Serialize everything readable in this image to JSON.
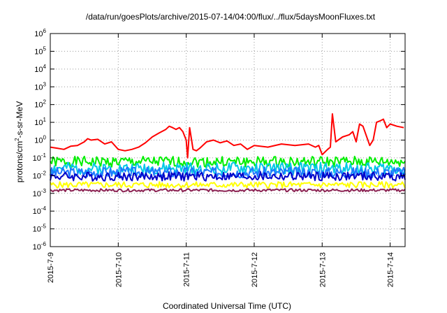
{
  "chart_data": {
    "type": "line",
    "title": "/data/run/goesPlots/archive/2015-07-14/04:00/flux/../flux/5daysMoonFluxes.txt",
    "xlabel": "Coordinated Universal Time (UTC)",
    "ylabel": "protons/cm2-s-sr-MeV",
    "yscale": "log",
    "ylim": [
      1e-06,
      1000000.0
    ],
    "xlim": [
      0,
      5.22
    ],
    "grid": true,
    "legend": "none",
    "x_ticks": [
      {
        "x": 0,
        "label": "2015-7-9"
      },
      {
        "x": 1,
        "label": "2015-7-10"
      },
      {
        "x": 2,
        "label": "2015-7-11"
      },
      {
        "x": 3,
        "label": "2015-7-12"
      },
      {
        "x": 4,
        "label": "2015-7-13"
      },
      {
        "x": 5,
        "label": "2015-7-14"
      }
    ],
    "y_ticks": [
      {
        "value": 1e-06,
        "base": "10",
        "exp": "-6"
      },
      {
        "value": 1e-05,
        "base": "10",
        "exp": "-5"
      },
      {
        "value": 0.0001,
        "base": "10",
        "exp": "-4"
      },
      {
        "value": 0.001,
        "base": "10",
        "exp": "-3"
      },
      {
        "value": 0.01,
        "base": "10",
        "exp": "-2"
      },
      {
        "value": 0.1,
        "base": "10",
        "exp": "-1"
      },
      {
        "value": 1,
        "base": "10",
        "exp": "0"
      },
      {
        "value": 10,
        "base": "10",
        "exp": "1"
      },
      {
        "value": 100,
        "base": "10",
        "exp": "2"
      },
      {
        "value": 1000,
        "base": "10",
        "exp": "3"
      },
      {
        "value": 10000,
        "base": "10",
        "exp": "4"
      },
      {
        "value": 100000,
        "base": "10",
        "exp": "5"
      },
      {
        "value": 1000000,
        "base": "10",
        "exp": "6"
      }
    ],
    "series": [
      {
        "color": "#ff0000",
        "width": 2,
        "x": [
          0,
          0.1,
          0.2,
          0.3,
          0.4,
          0.5,
          0.55,
          0.6,
          0.7,
          0.8,
          0.9,
          1.0,
          1.1,
          1.2,
          1.3,
          1.4,
          1.5,
          1.6,
          1.7,
          1.75,
          1.8,
          1.85,
          1.9,
          1.95,
          2.0,
          2.02,
          2.05,
          2.1,
          2.15,
          2.2,
          2.3,
          2.4,
          2.5,
          2.6,
          2.7,
          2.8,
          2.9,
          3.0,
          3.2,
          3.4,
          3.6,
          3.8,
          3.9,
          3.95,
          4.0,
          4.08,
          4.12,
          4.15,
          4.2,
          4.3,
          4.4,
          4.45,
          4.5,
          4.55,
          4.6,
          4.7,
          4.75,
          4.8,
          4.85,
          4.9,
          4.95,
          5.0,
          5.1,
          5.2
        ],
        "y": [
          0.4,
          0.35,
          0.3,
          0.45,
          0.5,
          0.8,
          1.2,
          1.0,
          1.1,
          0.6,
          0.8,
          0.3,
          0.25,
          0.3,
          0.4,
          0.7,
          1.5,
          2.5,
          4.0,
          6.0,
          5.0,
          4.0,
          5.0,
          3.0,
          1.0,
          0.1,
          5.0,
          0.3,
          0.25,
          0.35,
          0.8,
          1.0,
          0.7,
          0.9,
          0.5,
          0.6,
          0.3,
          0.5,
          0.4,
          0.6,
          0.5,
          0.6,
          0.4,
          0.5,
          0.15,
          0.3,
          0.4,
          30.0,
          0.8,
          1.5,
          2.0,
          3.0,
          0.8,
          8.0,
          6.0,
          0.5,
          1.0,
          10.0,
          12.0,
          15.0,
          5.0,
          8.0,
          6.0,
          5.0
        ]
      },
      {
        "color": "#00ee00",
        "width": 2,
        "center": 0.06,
        "spread": 2.0,
        "phase": 1
      },
      {
        "color": "#00c8e6",
        "width": 2,
        "center": 0.025,
        "spread": 2.2,
        "phase": 2
      },
      {
        "color": "#1e78ff",
        "width": 2,
        "center": 0.015,
        "spread": 2.0,
        "phase": 3
      },
      {
        "color": "#0000c8",
        "width": 2,
        "center": 0.009,
        "spread": 1.8,
        "phase": 4
      },
      {
        "color": "#ffff00",
        "width": 2,
        "center": 0.003,
        "spread": 1.5,
        "phase": 5
      },
      {
        "color": "#8b2252",
        "width": 2,
        "center": 0.0015,
        "spread": 1.2,
        "phase": 6
      }
    ]
  }
}
